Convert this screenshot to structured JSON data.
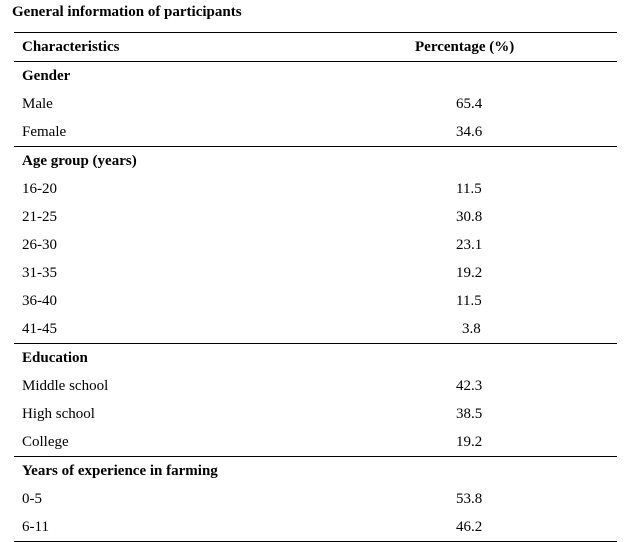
{
  "title": "General information of participants",
  "columns": {
    "characteristic": "Characteristics",
    "percentage": "Percentage (%)"
  },
  "sections": [
    {
      "heading": "Gender",
      "rows": [
        {
          "label": "Male",
          "value": "65.4"
        },
        {
          "label": "Female",
          "value": "34.6"
        }
      ]
    },
    {
      "heading": "Age group (years)",
      "rows": [
        {
          "label": "16-20",
          "value": "11.5"
        },
        {
          "label": "21-25",
          "value": "30.8"
        },
        {
          "label": "26-30",
          "value": "23.1"
        },
        {
          "label": "31-35",
          "value": "19.2"
        },
        {
          "label": "36-40",
          "value": "11.5"
        },
        {
          "label": "41-45",
          "value": "3.8"
        }
      ]
    },
    {
      "heading": "Education",
      "rows": [
        {
          "label": "Middle school",
          "value": "42.3"
        },
        {
          "label": "High school",
          "value": "38.5"
        },
        {
          "label": "College",
          "value": "19.2"
        }
      ]
    },
    {
      "heading": "Years of experience in farming",
      "rows": [
        {
          "label": "0-5",
          "value": "53.8"
        },
        {
          "label": "6-11",
          "value": "46.2"
        }
      ]
    }
  ]
}
